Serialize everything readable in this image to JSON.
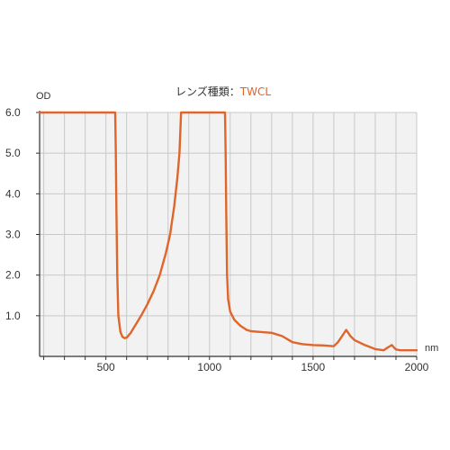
{
  "chart_data": {
    "type": "line",
    "title_prefix": "レンズ種類：",
    "title_value": "TWCL",
    "ylabel": "OD",
    "xlabel": "nm",
    "xlim": [
      180,
      2000
    ],
    "ylim": [
      0,
      6
    ],
    "x_ticks": [
      500,
      1000,
      1500,
      2000
    ],
    "x_gridlines": [
      200,
      300,
      400,
      500,
      600,
      700,
      800,
      900,
      1000,
      1100,
      1200,
      1300,
      1400,
      1500,
      1600,
      1700,
      1800,
      1900,
      2000
    ],
    "y_ticks": [
      {
        "value": 1,
        "label": "1.0"
      },
      {
        "value": 2,
        "label": "2.0"
      },
      {
        "value": 3,
        "label": "3.0"
      },
      {
        "value": 4,
        "label": "4.0"
      },
      {
        "value": 5,
        "label": "5.0"
      },
      {
        "value": 6,
        "label": "6.0"
      }
    ],
    "grid": true,
    "colors": {
      "line": "#e0652a",
      "title_value": "#e0652a",
      "plot_bg": "#f2f2f2",
      "grid": "#c8c8c8",
      "axis": "#333333"
    },
    "series": [
      {
        "x": [
          180,
          250,
          350,
          450,
          530,
          545,
          548,
          551,
          555,
          560,
          570,
          580,
          590,
          600,
          620,
          640,
          670,
          700,
          730,
          760,
          790,
          810,
          830,
          845,
          855,
          860,
          863,
          866,
          870,
          900,
          1000,
          1060,
          1070,
          1075,
          1078,
          1081,
          1085,
          1090,
          1100,
          1120,
          1150,
          1180,
          1200,
          1250,
          1300,
          1350,
          1400,
          1450,
          1500,
          1550,
          1600,
          1620,
          1640,
          1660,
          1680,
          1700,
          1750,
          1800,
          1840,
          1860,
          1880,
          1890,
          1900,
          1920,
          1950,
          2000
        ],
        "y": [
          6.0,
          6.0,
          6.0,
          6.0,
          6.0,
          6.0,
          5.0,
          3.5,
          2.0,
          1.0,
          0.6,
          0.48,
          0.45,
          0.46,
          0.58,
          0.75,
          1.0,
          1.28,
          1.6,
          2.0,
          2.55,
          3.0,
          3.7,
          4.4,
          5.0,
          5.6,
          6.0,
          6.0,
          6.0,
          6.0,
          6.0,
          6.0,
          6.0,
          6.0,
          5.0,
          3.5,
          2.0,
          1.4,
          1.1,
          0.9,
          0.75,
          0.65,
          0.62,
          0.6,
          0.58,
          0.5,
          0.35,
          0.3,
          0.28,
          0.27,
          0.25,
          0.35,
          0.5,
          0.65,
          0.5,
          0.4,
          0.28,
          0.18,
          0.15,
          0.22,
          0.28,
          0.22,
          0.17,
          0.15,
          0.15,
          0.15
        ]
      }
    ]
  }
}
